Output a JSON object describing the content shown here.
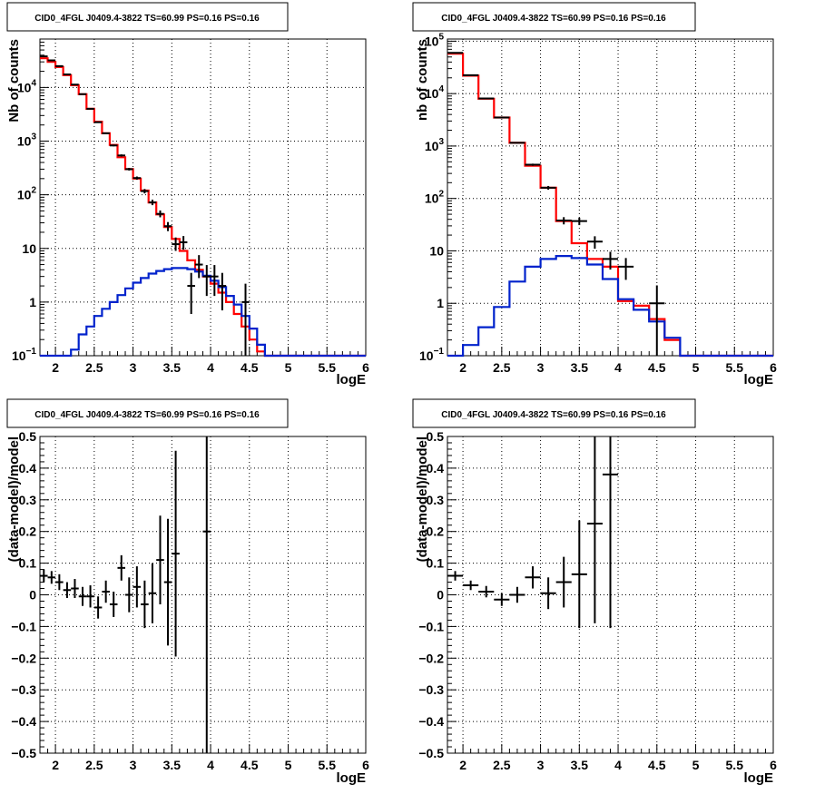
{
  "colors": {
    "data": "#000000",
    "total_model": "#ff0000",
    "source_model": "#0022cc",
    "grid": "#000000"
  },
  "chart_data": [
    {
      "type": "line",
      "title": "CID0_4FGL J0409.4-3822 TS=60.99 PS=0.16 PS=0.16",
      "xlabel": "logE",
      "ylabel": "Nb of counts",
      "xlim": [
        1.8,
        6.0
      ],
      "ylim": [
        0.1,
        80000
      ],
      "yscale": "log",
      "grid": true,
      "x_ticks": [
        "2",
        "2.5",
        "3",
        "3.5",
        "4",
        "4.5",
        "5",
        "5.5",
        "6"
      ],
      "y_ticks": [
        "10^-1",
        "1",
        "10",
        "10^2",
        "10^3",
        "10^4"
      ],
      "bin_edges": [
        1.8,
        1.9,
        2.0,
        2.1,
        2.2,
        2.3,
        2.4,
        2.5,
        2.6,
        2.7,
        2.8,
        2.9,
        3.0,
        3.1,
        3.2,
        3.3,
        3.4,
        3.5,
        3.6,
        3.7,
        3.8,
        3.9,
        4.0,
        4.1,
        4.2,
        4.3,
        4.4,
        4.5,
        4.6,
        4.7,
        4.8,
        4.9,
        5.0,
        5.1,
        5.2,
        5.3,
        5.4,
        5.5,
        5.6,
        5.7,
        5.8,
        5.9,
        6.0
      ],
      "series": [
        {
          "role": "total_model",
          "values": [
            35000,
            30000,
            24000,
            17000,
            11000,
            7500,
            4000,
            2300,
            1400,
            850,
            500,
            300,
            200,
            120,
            72,
            43,
            25,
            15,
            9,
            6,
            4,
            3,
            2.2,
            1.5,
            1,
            0.6,
            0.35,
            0.2,
            0.12,
            0.1,
            0.1,
            0.1,
            0.1,
            0.1,
            0.1,
            0.1,
            0.1,
            0.1,
            0.1,
            0.1,
            0.1,
            0.1
          ]
        },
        {
          "role": "source_model",
          "values": [
            0.1,
            0.1,
            0.1,
            0.1,
            0.13,
            0.25,
            0.35,
            0.55,
            0.75,
            1.0,
            1.35,
            1.8,
            2.3,
            2.8,
            3.4,
            3.8,
            4.1,
            4.3,
            4.3,
            4.1,
            3.7,
            3.1,
            2.5,
            1.9,
            1.3,
            0.9,
            0.55,
            0.32,
            0.16,
            0.1,
            0.1,
            0.1,
            0.1,
            0.1,
            0.1,
            0.1,
            0.1,
            0.1,
            0.1,
            0.1,
            0.1,
            0.1
          ]
        }
      ],
      "points": [
        {
          "x": 1.85,
          "y": 38000,
          "ylo": 37500,
          "yhi": 38500
        },
        {
          "x": 1.95,
          "y": 32000,
          "ylo": 31600,
          "yhi": 32400
        },
        {
          "x": 2.05,
          "y": 25000,
          "ylo": 24700,
          "yhi": 25300
        },
        {
          "x": 2.15,
          "y": 17500,
          "ylo": 17250,
          "yhi": 17750
        },
        {
          "x": 2.25,
          "y": 11300,
          "ylo": 11100,
          "yhi": 11500
        },
        {
          "x": 2.35,
          "y": 7500,
          "ylo": 7400,
          "yhi": 7600
        },
        {
          "x": 2.45,
          "y": 4000,
          "ylo": 3940,
          "yhi": 4060
        },
        {
          "x": 2.55,
          "y": 2250,
          "ylo": 2200,
          "yhi": 2300
        },
        {
          "x": 2.65,
          "y": 1400,
          "ylo": 1360,
          "yhi": 1440
        },
        {
          "x": 2.75,
          "y": 830,
          "ylo": 800,
          "yhi": 860
        },
        {
          "x": 2.85,
          "y": 540,
          "ylo": 515,
          "yhi": 565
        },
        {
          "x": 2.95,
          "y": 300,
          "ylo": 283,
          "yhi": 317
        },
        {
          "x": 3.05,
          "y": 205,
          "ylo": 191,
          "yhi": 219
        },
        {
          "x": 3.15,
          "y": 117,
          "ylo": 106,
          "yhi": 128
        },
        {
          "x": 3.25,
          "y": 72,
          "ylo": 64,
          "yhi": 81
        },
        {
          "x": 3.35,
          "y": 44,
          "ylo": 38,
          "yhi": 51
        },
        {
          "x": 3.45,
          "y": 26,
          "ylo": 21,
          "yhi": 31
        },
        {
          "x": 3.55,
          "y": 12,
          "ylo": 9,
          "yhi": 16
        },
        {
          "x": 3.65,
          "y": 13,
          "ylo": 9.5,
          "yhi": 17
        },
        {
          "x": 3.75,
          "y": 2,
          "ylo": 0.6,
          "yhi": 3.5
        },
        {
          "x": 3.85,
          "y": 5,
          "ylo": 2.8,
          "yhi": 7.5
        },
        {
          "x": 3.95,
          "y": 3,
          "ylo": 1.3,
          "yhi": 4.9
        },
        {
          "x": 4.05,
          "y": 3,
          "ylo": 1.3,
          "yhi": 4.9
        },
        {
          "x": 4.15,
          "y": 2,
          "ylo": 0.7,
          "yhi": 3.5
        },
        {
          "x": 4.45,
          "y": 1,
          "ylo": 0.1,
          "yhi": 2.2
        }
      ]
    },
    {
      "type": "line",
      "title": "CID0_4FGL J0409.4-3822 TS=60.99 PS=0.16 PS=0.16",
      "xlabel": "logE",
      "ylabel": "nb of counts",
      "xlim": [
        1.8,
        6.0
      ],
      "ylim": [
        0.1,
        110000
      ],
      "yscale": "log",
      "grid": true,
      "x_ticks": [
        "2",
        "2.5",
        "3",
        "3.5",
        "4",
        "4.5",
        "5",
        "5.5",
        "6"
      ],
      "y_ticks": [
        "10^-1",
        "1",
        "10",
        "10^2",
        "10^3",
        "10^4",
        "10^5"
      ],
      "bin_edges": [
        1.8,
        2.0,
        2.2,
        2.4,
        2.6,
        2.8,
        3.0,
        3.2,
        3.4,
        3.6,
        3.8,
        4.0,
        4.2,
        4.4,
        4.6,
        4.8,
        5.0,
        5.2,
        5.4,
        5.6,
        5.8,
        6.0
      ],
      "series": [
        {
          "role": "total_model",
          "values": [
            58000,
            22000,
            8000,
            3500,
            1150,
            420,
            160,
            37,
            14,
            7,
            5,
            1.1,
            0.9,
            0.5,
            0.2,
            0.1,
            0.1,
            0.1,
            0.1,
            0.1,
            0.1
          ]
        },
        {
          "role": "source_model",
          "values": [
            0.1,
            0.16,
            0.35,
            0.85,
            2.6,
            5,
            7,
            8,
            7.3,
            5.5,
            2.9,
            1.2,
            0.75,
            0.45,
            0.22,
            0.1,
            0.1,
            0.1,
            0.1,
            0.1,
            0.1
          ]
        }
      ],
      "points": [
        {
          "x": 1.9,
          "y": 60000,
          "ylo": 59500,
          "yhi": 60500
        },
        {
          "x": 2.1,
          "y": 22500,
          "ylo": 22300,
          "yhi": 22700
        },
        {
          "x": 2.3,
          "y": 8100,
          "ylo": 8000,
          "yhi": 8200
        },
        {
          "x": 2.5,
          "y": 3500,
          "ylo": 3440,
          "yhi": 3560
        },
        {
          "x": 2.7,
          "y": 1150,
          "ylo": 1115,
          "yhi": 1185
        },
        {
          "x": 2.9,
          "y": 440,
          "ylo": 419,
          "yhi": 461
        },
        {
          "x": 3.1,
          "y": 160,
          "ylo": 147,
          "yhi": 173
        },
        {
          "x": 3.3,
          "y": 38,
          "ylo": 32,
          "yhi": 44
        },
        {
          "x": 3.5,
          "y": 37,
          "ylo": 31,
          "yhi": 43
        },
        {
          "x": 3.7,
          "y": 15,
          "ylo": 11,
          "yhi": 19
        },
        {
          "x": 3.9,
          "y": 7,
          "ylo": 4.4,
          "yhi": 9.6
        },
        {
          "x": 4.1,
          "y": 5,
          "ylo": 2.8,
          "yhi": 7.3
        },
        {
          "x": 4.5,
          "y": 1,
          "ylo": 0.1,
          "yhi": 2.2
        }
      ]
    },
    {
      "type": "scatter",
      "title": "CID0_4FGL J0409.4-3822 TS=60.99 PS=0.16 PS=0.16",
      "xlabel": "logE",
      "ylabel": "(data-model)/model",
      "xlim": [
        1.8,
        6.0
      ],
      "ylim": [
        -0.5,
        0.5
      ],
      "grid": true,
      "x_ticks": [
        "2",
        "2.5",
        "3",
        "3.5",
        "4",
        "4.5",
        "5",
        "5.5",
        "6"
      ],
      "y_ticks": [
        "-0.5",
        "-0.4",
        "-0.3",
        "-0.2",
        "-0.1",
        "0",
        "0.1",
        "0.2",
        "0.3",
        "0.4",
        "0.5"
      ],
      "points": [
        {
          "x": 1.85,
          "y": 0.06,
          "ylo": 0.04,
          "yhi": 0.08
        },
        {
          "x": 1.95,
          "y": 0.055,
          "ylo": 0.035,
          "yhi": 0.075
        },
        {
          "x": 2.05,
          "y": 0.04,
          "ylo": 0.015,
          "yhi": 0.065
        },
        {
          "x": 2.15,
          "y": 0.015,
          "ylo": -0.01,
          "yhi": 0.04
        },
        {
          "x": 2.25,
          "y": 0.02,
          "ylo": -0.01,
          "yhi": 0.05
        },
        {
          "x": 2.35,
          "y": -0.005,
          "ylo": -0.035,
          "yhi": 0.025
        },
        {
          "x": 2.45,
          "y": -0.005,
          "ylo": -0.04,
          "yhi": 0.03
        },
        {
          "x": 2.55,
          "y": -0.04,
          "ylo": -0.075,
          "yhi": -0.005
        },
        {
          "x": 2.65,
          "y": 0.01,
          "ylo": -0.025,
          "yhi": 0.045
        },
        {
          "x": 2.75,
          "y": -0.03,
          "ylo": -0.07,
          "yhi": 0.01
        },
        {
          "x": 2.85,
          "y": 0.085,
          "ylo": 0.045,
          "yhi": 0.125
        },
        {
          "x": 2.95,
          "y": 0,
          "ylo": -0.055,
          "yhi": 0.055
        },
        {
          "x": 3.05,
          "y": 0.025,
          "ylo": -0.04,
          "yhi": 0.09
        },
        {
          "x": 3.15,
          "y": -0.03,
          "ylo": -0.105,
          "yhi": 0.045
        },
        {
          "x": 3.25,
          "y": 0.005,
          "ylo": -0.09,
          "yhi": 0.1
        },
        {
          "x": 3.35,
          "y": 0.11,
          "ylo": -0.03,
          "yhi": 0.25
        },
        {
          "x": 3.45,
          "y": 0.04,
          "ylo": -0.16,
          "yhi": 0.24
        },
        {
          "x": 3.55,
          "y": 0.13,
          "ylo": -0.195,
          "yhi": 0.455
        },
        {
          "x": 3.95,
          "y": 0.2,
          "ylo": -0.5,
          "yhi": 0.5
        }
      ]
    },
    {
      "type": "scatter",
      "title": "CID0_4FGL J0409.4-3822 TS=60.99 PS=0.16 PS=0.16",
      "xlabel": "logE",
      "ylabel": "(data-model)/model",
      "xlim": [
        1.8,
        6.0
      ],
      "ylim": [
        -0.5,
        0.5
      ],
      "grid": true,
      "x_ticks": [
        "2",
        "2.5",
        "3",
        "3.5",
        "4",
        "4.5",
        "5",
        "5.5",
        "6"
      ],
      "y_ticks": [
        "-0.5",
        "-0.4",
        "-0.3",
        "-0.2",
        "-0.1",
        "0",
        "0.1",
        "0.2",
        "0.3",
        "0.4",
        "0.5"
      ],
      "points": [
        {
          "x": 1.9,
          "y": 0.06,
          "ylo": 0.045,
          "yhi": 0.075
        },
        {
          "x": 2.1,
          "y": 0.03,
          "ylo": 0.015,
          "yhi": 0.045
        },
        {
          "x": 2.3,
          "y": 0.01,
          "ylo": -0.008,
          "yhi": 0.028
        },
        {
          "x": 2.5,
          "y": -0.015,
          "ylo": -0.035,
          "yhi": 0.005
        },
        {
          "x": 2.7,
          "y": 0,
          "ylo": -0.025,
          "yhi": 0.025
        },
        {
          "x": 2.9,
          "y": 0.055,
          "ylo": 0.02,
          "yhi": 0.09
        },
        {
          "x": 3.1,
          "y": 0.005,
          "ylo": -0.045,
          "yhi": 0.055
        },
        {
          "x": 3.3,
          "y": 0.04,
          "ylo": -0.04,
          "yhi": 0.12
        },
        {
          "x": 3.5,
          "y": 0.065,
          "ylo": -0.105,
          "yhi": 0.235
        },
        {
          "x": 3.7,
          "y": 0.225,
          "ylo": -0.09,
          "yhi": 0.5
        },
        {
          "x": 3.9,
          "y": 0.38,
          "ylo": -0.105,
          "yhi": 0.5
        }
      ]
    }
  ]
}
